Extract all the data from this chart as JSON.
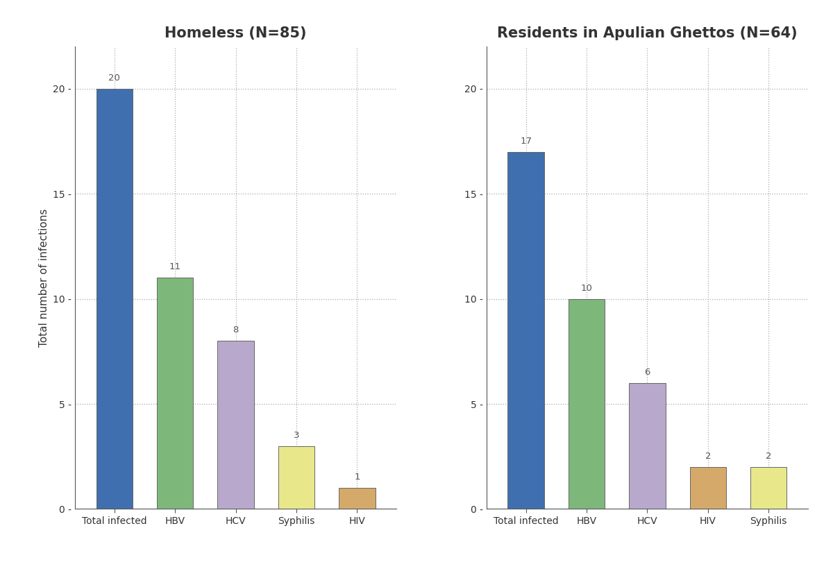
{
  "panel1": {
    "title": "Homeless (N=85)",
    "categories": [
      "Total infected",
      "HBV",
      "HCV",
      "Syphilis",
      "HIV"
    ],
    "values": [
      20,
      11,
      8,
      3,
      1
    ],
    "colors": [
      "#3F6FAE",
      "#7DB87A",
      "#B8A8CC",
      "#E8E88A",
      "#D4A96A"
    ]
  },
  "panel2": {
    "title": "Residents in Apulian Ghettos (N=64)",
    "categories": [
      "Total infected",
      "HBV",
      "HCV",
      "HIV",
      "Syphilis"
    ],
    "values": [
      17,
      10,
      6,
      2,
      2
    ],
    "colors": [
      "#3F6FAE",
      "#7DB87A",
      "#B8A8CC",
      "#D4A96A",
      "#E8E88A"
    ]
  },
  "ylabel": "Total number of infections",
  "ylim": [
    0,
    22
  ],
  "yticks": [
    0,
    5,
    10,
    15,
    20
  ],
  "background_color": "#FFFFFF",
  "panel_bg": "#FFFFFF",
  "grid_color": "#AAAAAA",
  "title_fontsize": 15,
  "label_fontsize": 11,
  "tick_fontsize": 10,
  "annotation_fontsize": 9.5,
  "bar_width": 0.6,
  "annotation_color": "#555555",
  "title_color": "#333333",
  "spine_color": "#555555",
  "tick_color": "#333333"
}
